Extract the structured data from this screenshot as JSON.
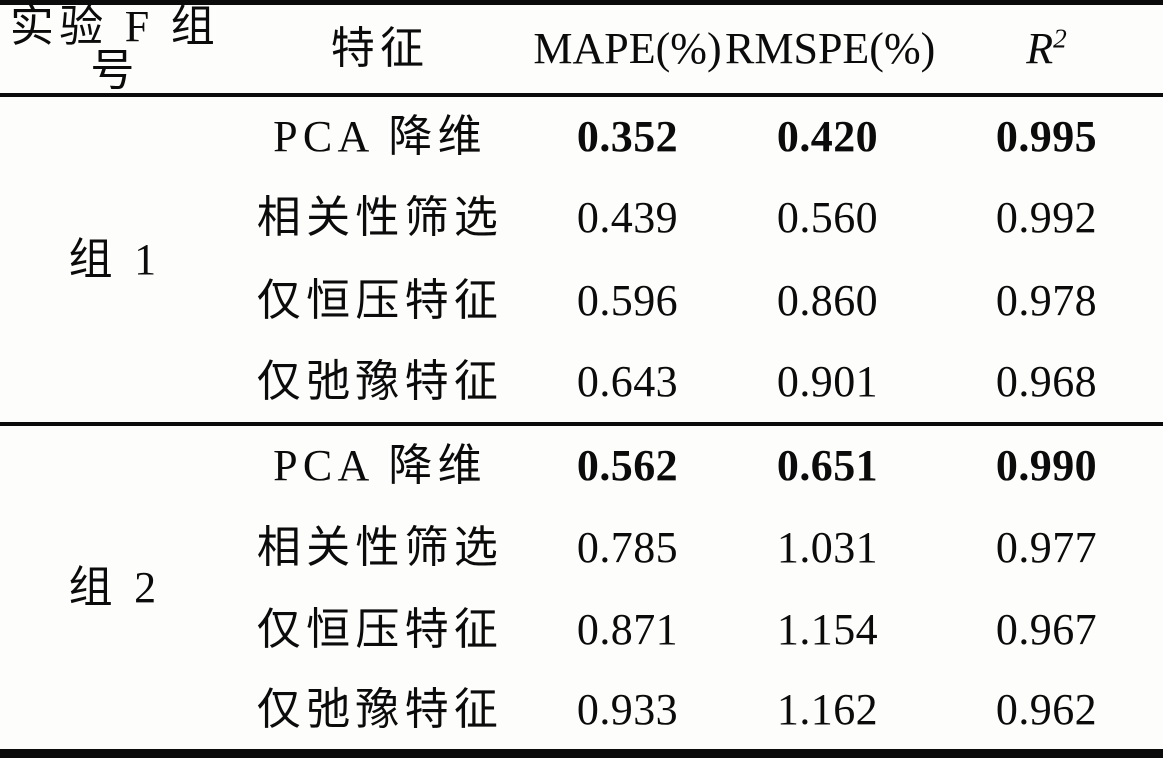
{
  "table": {
    "headers": {
      "group": "实验 F 组号",
      "feature": "特征",
      "mape": "MAPE(%)",
      "rmspe": "RMSPE(%)",
      "r2_base": "R",
      "r2_sup": "2"
    },
    "groups": [
      {
        "label": "组 1",
        "rows": [
          {
            "feature": "PCA 降维",
            "mape": "0.352",
            "rmspe": "0.420",
            "r2": "0.995",
            "emphasis": true
          },
          {
            "feature": "相关性筛选",
            "mape": "0.439",
            "rmspe": "0.560",
            "r2": "0.992",
            "emphasis": false
          },
          {
            "feature": "仅恒压特征",
            "mape": "0.596",
            "rmspe": "0.860",
            "r2": "0.978",
            "emphasis": false
          },
          {
            "feature": "仅弛豫特征",
            "mape": "0.643",
            "rmspe": "0.901",
            "r2": "0.968",
            "emphasis": false
          }
        ]
      },
      {
        "label": "组 2",
        "rows": [
          {
            "feature": "PCA 降维",
            "mape": "0.562",
            "rmspe": "0.651",
            "r2": "0.990",
            "emphasis": true
          },
          {
            "feature": "相关性筛选",
            "mape": "0.785",
            "rmspe": "1.031",
            "r2": "0.977",
            "emphasis": false
          },
          {
            "feature": "仅恒压特征",
            "mape": "0.871",
            "rmspe": "1.154",
            "r2": "0.967",
            "emphasis": false
          },
          {
            "feature": "仅弛豫特征",
            "mape": "0.933",
            "rmspe": "1.162",
            "r2": "0.962",
            "emphasis": false
          }
        ]
      }
    ]
  }
}
